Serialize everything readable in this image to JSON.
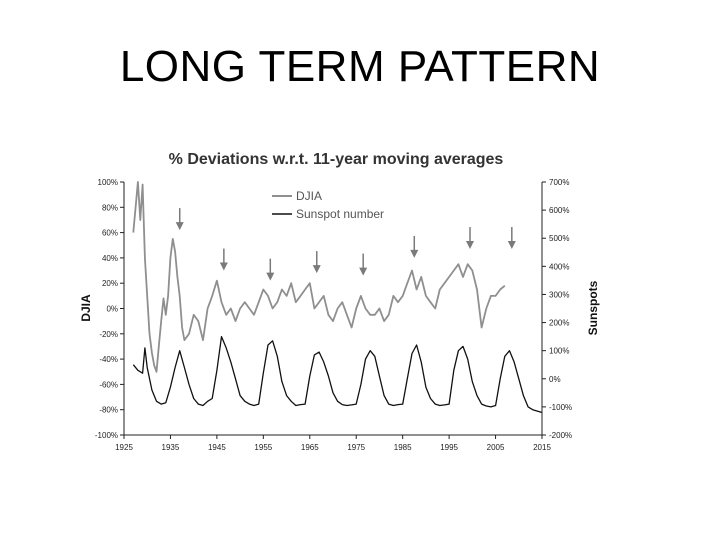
{
  "slide": {
    "title": "LONG TERM PATTERN"
  },
  "chart_data": {
    "type": "line",
    "title": "% Deviations w.r.t. 11-year moving averages",
    "xlabel": "",
    "ylabel_left": "DJIA",
    "ylabel_right": "Sunspots",
    "xlim": [
      1925,
      2015
    ],
    "ylim_left": [
      -100,
      100
    ],
    "ylim_right": [
      -200,
      700
    ],
    "x_ticks": [
      "1925",
      "1935",
      "1945",
      "1955",
      "1965",
      "1975",
      "1985",
      "1995",
      "2005",
      "2015"
    ],
    "y_ticks_left": [
      "100%",
      "80%",
      "60%",
      "40%",
      "20%",
      "0%",
      "-20%",
      "-40%",
      "-60%",
      "-80%",
      "-100%"
    ],
    "y_ticks_right": [
      "700%",
      "600%",
      "500%",
      "400%",
      "300%",
      "200%",
      "100%",
      "0%",
      "-100%",
      "-200%"
    ],
    "legend_position": "top-center",
    "colors": {
      "djia": "#8f8f8f",
      "sunspot": "#111111",
      "arrows": "#7a7a7a"
    },
    "series": [
      {
        "name": "DJIA",
        "axis": "left",
        "x": [
          1927,
          1928,
          1928.5,
          1929,
          1929.5,
          1930,
          1930.5,
          1931,
          1931.5,
          1932,
          1932.5,
          1933,
          1933.5,
          1934,
          1934.5,
          1935,
          1935.5,
          1936,
          1936.5,
          1937,
          1937.5,
          1938,
          1939,
          1940,
          1941,
          1942,
          1943,
          1944,
          1945,
          1946,
          1947,
          1948,
          1949,
          1950,
          1951,
          1952,
          1953,
          1954,
          1955,
          1956,
          1957,
          1958,
          1959,
          1960,
          1961,
          1962,
          1963,
          1964,
          1965,
          1966,
          1967,
          1968,
          1969,
          1970,
          1971,
          1972,
          1973,
          1974,
          1975,
          1976,
          1977,
          1978,
          1979,
          1980,
          1981,
          1982,
          1983,
          1984,
          1985,
          1986,
          1987,
          1988,
          1989,
          1990,
          1991,
          1992,
          1993,
          1994,
          1995,
          1996,
          1997,
          1998,
          1999,
          2000,
          2001,
          2002,
          2003,
          2004,
          2005,
          2006,
          2007
        ],
        "y": [
          60,
          100,
          70,
          98,
          40,
          10,
          -20,
          -35,
          -45,
          -50,
          -30,
          -10,
          8,
          -5,
          10,
          40,
          55,
          45,
          25,
          10,
          -15,
          -25,
          -20,
          -5,
          -10,
          -25,
          0,
          10,
          22,
          5,
          -5,
          0,
          -10,
          0,
          5,
          0,
          -5,
          5,
          15,
          10,
          0,
          5,
          15,
          10,
          20,
          5,
          10,
          15,
          20,
          0,
          5,
          10,
          -5,
          -10,
          0,
          5,
          -5,
          -15,
          0,
          10,
          0,
          -5,
          -5,
          0,
          -10,
          -5,
          10,
          5,
          10,
          20,
          30,
          15,
          25,
          10,
          5,
          0,
          15,
          20,
          25,
          30,
          35,
          25,
          35,
          30,
          15,
          -15,
          0,
          10,
          10,
          15,
          18
        ]
      },
      {
        "name": "Sunspot number",
        "axis": "right",
        "x": [
          1927,
          1928,
          1929,
          1929.5,
          1930,
          1931,
          1932,
          1933,
          1934,
          1935,
          1936,
          1937,
          1938,
          1939,
          1940,
          1941,
          1942,
          1943,
          1944,
          1945,
          1946,
          1947,
          1948,
          1949,
          1950,
          1951,
          1952,
          1953,
          1954,
          1955,
          1956,
          1957,
          1958,
          1959,
          1960,
          1961,
          1962,
          1963,
          1964,
          1965,
          1966,
          1967,
          1968,
          1969,
          1970,
          1971,
          1972,
          1973,
          1974,
          1975,
          1976,
          1977,
          1978,
          1979,
          1980,
          1981,
          1982,
          1983,
          1984,
          1985,
          1986,
          1987,
          1988,
          1989,
          1990,
          1991,
          1992,
          1993,
          1994,
          1995,
          1996,
          1997,
          1998,
          1999,
          2000,
          2001,
          2002,
          2003,
          2004,
          2005,
          2006,
          2007,
          2008,
          2009,
          2010,
          2011,
          2012,
          2013,
          2014,
          2015
        ],
        "y": [
          50,
          30,
          20,
          110,
          40,
          -40,
          -80,
          -90,
          -85,
          -30,
          40,
          100,
          40,
          -20,
          -70,
          -90,
          -95,
          -80,
          -70,
          30,
          150,
          110,
          60,
          0,
          -60,
          -80,
          -90,
          -95,
          -90,
          20,
          120,
          135,
          80,
          -10,
          -60,
          -80,
          -95,
          -92,
          -90,
          10,
          85,
          95,
          60,
          10,
          -50,
          -80,
          -92,
          -95,
          -93,
          -90,
          -20,
          70,
          100,
          80,
          10,
          -60,
          -90,
          -95,
          -92,
          -90,
          0,
          90,
          120,
          60,
          -30,
          -70,
          -90,
          -95,
          -93,
          -90,
          30,
          100,
          115,
          70,
          -10,
          -60,
          -90,
          -97,
          -100,
          -95,
          0,
          80,
          100,
          60,
          0,
          -60,
          -100,
          -110,
          -115,
          -120
        ]
      }
    ],
    "annotations": [
      {
        "type": "arrow-down",
        "x": 1937,
        "y": 62
      },
      {
        "type": "arrow-down",
        "x": 1946.5,
        "y": 30
      },
      {
        "type": "arrow-down",
        "x": 1956.5,
        "y": 22
      },
      {
        "type": "arrow-down",
        "x": 1966.5,
        "y": 28
      },
      {
        "type": "arrow-down",
        "x": 1976.5,
        "y": 26
      },
      {
        "type": "arrow-down",
        "x": 1987.5,
        "y": 40
      },
      {
        "type": "arrow-down",
        "x": 1999.5,
        "y": 47
      },
      {
        "type": "arrow-down",
        "x": 2008.5,
        "y": 47
      }
    ]
  }
}
